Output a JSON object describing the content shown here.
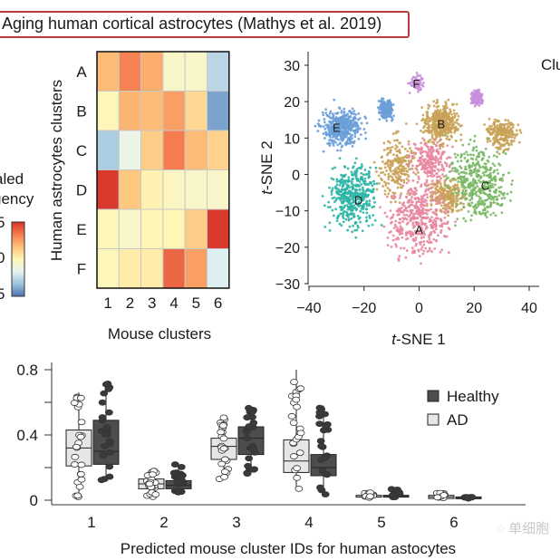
{
  "panel_title": "Aging human cortical astrocytes (Mathys et al. 2019)",
  "watermark": {
    "icon": "wechat-icon",
    "text": "单细胞"
  },
  "chart_data": [
    {
      "type": "heatmap",
      "title": "",
      "xlabel": "Mouse clusters",
      "ylabel": "Human astrocytes clusters",
      "x_categories": [
        "1",
        "2",
        "3",
        "4",
        "5",
        "6"
      ],
      "y_categories": [
        "A",
        "B",
        "C",
        "D",
        "E",
        "F"
      ],
      "colorbar": {
        "label_lines": [
          "aled",
          "uency"
        ],
        "ticks": [
          "5",
          "0",
          "5"
        ],
        "range": [
          -1.5,
          1.5
        ],
        "colors": [
          "#4a73b0",
          "#9cc3dd",
          "#e6f3f3",
          "#fff6b5",
          "#fdc27a",
          "#f47c4e",
          "#d7322a"
        ]
      },
      "values": [
        [
          0.55,
          0.95,
          0.65,
          -0.15,
          -0.15,
          -0.8
        ],
        [
          -0.05,
          0.6,
          0.55,
          0.75,
          0.3,
          -1.2
        ],
        [
          -0.9,
          -0.4,
          0.4,
          1.0,
          0.55,
          0.35
        ],
        [
          1.45,
          0.45,
          0.05,
          -0.1,
          -0.15,
          -0.15
        ],
        [
          -0.05,
          -0.15,
          0.0,
          0.0,
          0.4,
          1.45
        ],
        [
          -0.05,
          0.1,
          0.1,
          1.15,
          0.75,
          -0.55
        ]
      ]
    },
    {
      "type": "scatter",
      "title": "",
      "xlabel": "t-SNE 1",
      "ylabel": "t-SNE 2",
      "xlim": [
        -40,
        40
      ],
      "ylim": [
        -30,
        30
      ],
      "xticks": [
        "-40",
        "-20",
        "0",
        "20",
        "40"
      ],
      "yticks": [
        "30",
        "20",
        "10",
        "0",
        "-10",
        "-20",
        "-30"
      ],
      "legend_partial": "Clu",
      "clusters": [
        {
          "label": "A",
          "color": "#e8869f",
          "center": [
            0,
            -12
          ],
          "spread": [
            9,
            8
          ],
          "label_pos": [
            0,
            -15
          ]
        },
        {
          "label": "B",
          "color": "#c9a257",
          "center": [
            8,
            14
          ],
          "spread": [
            5,
            4
          ],
          "label_pos": [
            8,
            14
          ]
        },
        {
          "label": "C",
          "color": "#79b865",
          "center": [
            22,
            -2
          ],
          "spread": [
            8,
            8
          ],
          "label_pos": [
            24,
            -3
          ]
        },
        {
          "label": "D",
          "color": "#2cb5a6",
          "center": [
            -24,
            -6
          ],
          "spread": [
            7,
            7
          ],
          "label_pos": [
            -22,
            -7
          ]
        },
        {
          "label": "E",
          "color": "#6a9fd8",
          "center": [
            -28,
            13
          ],
          "spread": [
            6,
            4
          ],
          "label_pos": [
            -30,
            13
          ]
        },
        {
          "label": "F",
          "color": "#c98fdc",
          "center": [
            -1,
            25
          ],
          "spread": [
            2,
            2
          ],
          "label_pos": [
            -1,
            25
          ]
        }
      ],
      "extra_groups": [
        {
          "color": "#c9a257",
          "center": [
            30,
            11
          ],
          "spread": [
            4,
            3
          ]
        },
        {
          "color": "#c9a257",
          "center": [
            -8,
            2
          ],
          "spread": [
            5,
            7
          ]
        },
        {
          "color": "#c9a257",
          "center": [
            10,
            -6
          ],
          "spread": [
            5,
            4
          ]
        },
        {
          "color": "#e8869f",
          "center": [
            4,
            4
          ],
          "spread": [
            6,
            5
          ]
        },
        {
          "color": "#c98fdc",
          "center": [
            21,
            21
          ],
          "spread": [
            1.5,
            1.5
          ]
        },
        {
          "color": "#6a9fd8",
          "center": [
            -12,
            18
          ],
          "spread": [
            2,
            2
          ]
        }
      ]
    },
    {
      "type": "box",
      "title": "",
      "xlabel": "Predicted mouse cluster IDs for human astocytes",
      "ylabel": "",
      "ylim": [
        0,
        0.85
      ],
      "yticks": [
        "0",
        "0.4",
        "0.8"
      ],
      "categories": [
        "1",
        "2",
        "3",
        "4",
        "5",
        "6"
      ],
      "legend": [
        {
          "name": "Healthy",
          "color": "#4d4d4d"
        },
        {
          "name": "AD",
          "color": "#e6e6e6"
        }
      ],
      "series": [
        {
          "name": "AD",
          "boxes": [
            {
              "min": 0.02,
              "q1": 0.21,
              "median": 0.32,
              "q3": 0.43,
              "max": 0.66
            },
            {
              "min": 0.02,
              "q1": 0.07,
              "median": 0.1,
              "q3": 0.13,
              "max": 0.18
            },
            {
              "min": 0.13,
              "q1": 0.25,
              "median": 0.33,
              "q3": 0.38,
              "max": 0.51
            },
            {
              "min": 0.06,
              "q1": 0.17,
              "median": 0.24,
              "q3": 0.37,
              "max": 0.8
            },
            {
              "min": 0.01,
              "q1": 0.02,
              "median": 0.02,
              "q3": 0.03,
              "max": 0.05
            },
            {
              "min": 0.01,
              "q1": 0.01,
              "median": 0.02,
              "q3": 0.03,
              "max": 0.05
            }
          ]
        },
        {
          "name": "Healthy",
          "boxes": [
            {
              "min": 0.12,
              "q1": 0.22,
              "median": 0.3,
              "q3": 0.49,
              "max": 0.72
            },
            {
              "min": 0.03,
              "q1": 0.07,
              "median": 0.09,
              "q3": 0.12,
              "max": 0.23
            },
            {
              "min": 0.16,
              "q1": 0.28,
              "median": 0.38,
              "q3": 0.45,
              "max": 0.57
            },
            {
              "min": 0.02,
              "q1": 0.15,
              "median": 0.2,
              "q3": 0.28,
              "max": 0.58
            },
            {
              "min": 0.01,
              "q1": 0.02,
              "median": 0.02,
              "q3": 0.03,
              "max": 0.07
            },
            {
              "min": 0.01,
              "q1": 0.01,
              "median": 0.01,
              "q3": 0.02,
              "max": 0.02
            }
          ]
        }
      ]
    }
  ]
}
